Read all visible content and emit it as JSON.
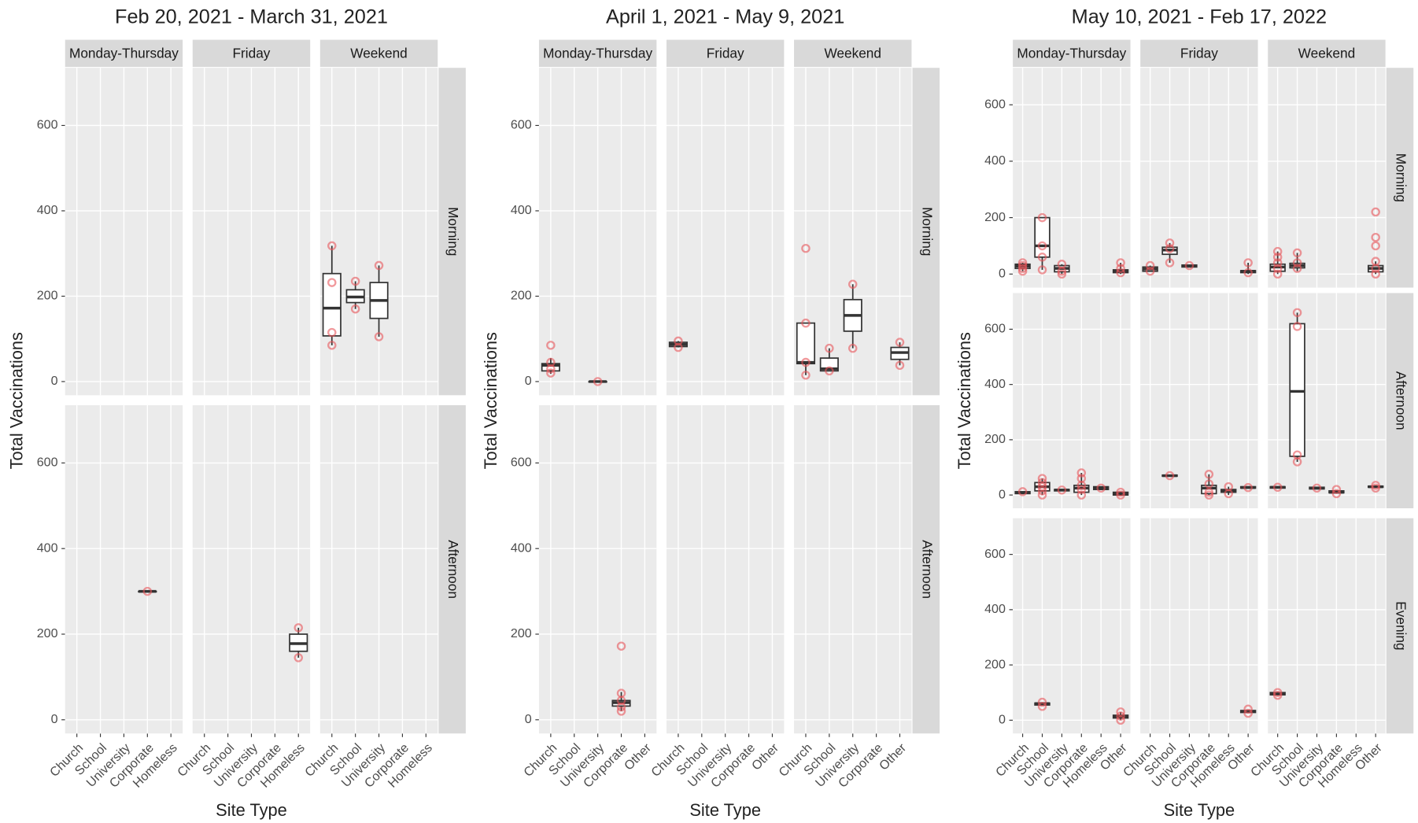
{
  "chart_data": [
    {
      "type": "box",
      "title": "Feb 20, 2021 - March 31, 2021",
      "x_label": "Site Type",
      "y_label": "Total Vaccinations",
      "columns": [
        "Monday-Thursday",
        "Friday",
        "Weekend"
      ],
      "rows": [
        "Morning",
        "Afternoon"
      ],
      "categories": [
        "Church",
        "School",
        "University",
        "Corporate",
        "Homeless"
      ],
      "ylim": [
        -32,
        735
      ],
      "yticks": [
        0,
        200,
        400,
        600
      ],
      "box_color": "#333333",
      "point_color": "#e8555a",
      "panels": [
        [
          [
            null,
            null,
            null,
            null,
            null
          ],
          [
            null,
            null,
            null,
            null,
            null
          ],
          [
            {
              "min": 85,
              "q1": 107,
              "median": 172,
              "q3": 253,
              "max": 318,
              "points": [
                318,
                232,
                115,
                85
              ]
            },
            {
              "min": 170,
              "q1": 185,
              "median": 198,
              "q3": 215,
              "max": 235,
              "points": [
                235,
                170
              ]
            },
            {
              "min": 105,
              "q1": 148,
              "median": 190,
              "q3": 232,
              "max": 272,
              "points": [
                272,
                105
              ]
            },
            null,
            null
          ]
        ],
        [
          [
            null,
            null,
            null,
            {
              "min": 300,
              "q1": 300,
              "median": 300,
              "q3": 300,
              "max": 300,
              "points": [
                300
              ]
            },
            null
          ],
          [
            null,
            null,
            null,
            null,
            {
              "min": 145,
              "q1": 160,
              "median": 178,
              "q3": 200,
              "max": 215,
              "points": [
                215,
                145
              ]
            }
          ],
          [
            null,
            null,
            null,
            null,
            null
          ]
        ]
      ]
    },
    {
      "type": "box",
      "title": "April 1, 2021 - May 9, 2021",
      "x_label": "Site Type",
      "y_label": "Total Vaccinations",
      "columns": [
        "Monday-Thursday",
        "Friday",
        "Weekend"
      ],
      "rows": [
        "Morning",
        "Afternoon"
      ],
      "categories": [
        "Church",
        "School",
        "University",
        "Corporate",
        "Other"
      ],
      "ylim": [
        -32,
        735
      ],
      "yticks": [
        0,
        200,
        400,
        600
      ],
      "box_color": "#333333",
      "point_color": "#e8555a",
      "panels": [
        [
          [
            {
              "min": 18,
              "q1": 25,
              "median": 38,
              "q3": 42,
              "max": 55,
              "points": [
                85,
                45,
                30,
                20
              ]
            },
            null,
            {
              "min": 0,
              "q1": 0,
              "median": 0,
              "q3": 0,
              "max": 0,
              "points": [
                0
              ]
            },
            null,
            null
          ],
          [
            {
              "min": 80,
              "q1": 82,
              "median": 87,
              "q3": 92,
              "max": 95,
              "points": [
                95,
                80
              ]
            },
            null,
            null,
            null,
            null
          ],
          [
            {
              "min": 15,
              "q1": 42,
              "median": 45,
              "q3": 137,
              "max": 137,
              "points": [
                312,
                137,
                45,
                15
              ]
            },
            {
              "min": 25,
              "q1": 25,
              "median": 30,
              "q3": 55,
              "max": 78,
              "points": [
                78,
                25
              ]
            },
            {
              "min": 78,
              "q1": 118,
              "median": 155,
              "q3": 192,
              "max": 228,
              "points": [
                228,
                78
              ]
            },
            null,
            {
              "min": 38,
              "q1": 52,
              "median": 68,
              "q3": 80,
              "max": 92,
              "points": [
                92,
                38
              ]
            }
          ]
        ],
        [
          [
            null,
            null,
            null,
            {
              "min": 20,
              "q1": 32,
              "median": 40,
              "q3": 45,
              "max": 65,
              "points": [
                172,
                62,
                45,
                30,
                20
              ]
            },
            null
          ],
          [
            null,
            null,
            null,
            null,
            null
          ],
          [
            null,
            null,
            null,
            null,
            null
          ]
        ]
      ]
    },
    {
      "type": "box",
      "title": "May 10, 2021 - Feb 17, 2022",
      "x_label": "Site Type",
      "y_label": "Total Vaccinations",
      "columns": [
        "Monday-Thursday",
        "Friday",
        "Weekend"
      ],
      "rows": [
        "Morning",
        "Afternoon",
        "Evening"
      ],
      "categories": [
        "Church",
        "School",
        "University",
        "Corporate",
        "Homeless",
        "Other"
      ],
      "ylim": [
        -48,
        731
      ],
      "yticks": [
        0,
        200,
        400,
        600
      ],
      "box_color": "#333333",
      "point_color": "#e8555a",
      "panels": [
        [
          [
            {
              "min": 10,
              "q1": 20,
              "median": 28,
              "q3": 35,
              "max": 40,
              "points": [
                40,
                30,
                20,
                10
              ]
            },
            {
              "min": 15,
              "q1": 60,
              "median": 100,
              "q3": 200,
              "max": 200,
              "points": [
                200,
                100,
                60,
                15
              ]
            },
            {
              "min": 0,
              "q1": 8,
              "median": 20,
              "q3": 30,
              "max": 35,
              "points": [
                35,
                10,
                0
              ]
            },
            null,
            null,
            {
              "min": 0,
              "q1": 5,
              "median": 10,
              "q3": 15,
              "max": 40,
              "points": [
                40,
                20,
                5
              ]
            }
          ],
          [
            {
              "min": 10,
              "q1": 10,
              "median": 18,
              "q3": 25,
              "max": 30,
              "points": [
                30,
                10
              ]
            },
            {
              "min": 40,
              "q1": 70,
              "median": 85,
              "q3": 95,
              "max": 110,
              "points": [
                110,
                90,
                40
              ]
            },
            {
              "min": 25,
              "q1": 25,
              "median": 28,
              "q3": 32,
              "max": 32,
              "points": [
                30
              ]
            },
            null,
            null,
            {
              "min": 0,
              "q1": 5,
              "median": 10,
              "q3": 12,
              "max": 40,
              "points": [
                40,
                5
              ]
            }
          ],
          [
            {
              "min": 0,
              "q1": 10,
              "median": 25,
              "q3": 35,
              "max": 80,
              "points": [
                80,
                60,
                40,
                20,
                0
              ]
            },
            {
              "min": 10,
              "q1": 22,
              "median": 30,
              "q3": 38,
              "max": 75,
              "points": [
                75,
                40,
                20
              ]
            },
            null,
            null,
            null,
            {
              "min": 0,
              "q1": 8,
              "median": 20,
              "q3": 30,
              "max": 45,
              "points": [
                220,
                130,
                100,
                45,
                20,
                0
              ]
            }
          ]
        ],
        [
          [
            {
              "min": 5,
              "q1": 5,
              "median": 8,
              "q3": 12,
              "max": 12,
              "points": [
                12
              ]
            },
            {
              "min": 0,
              "q1": 15,
              "median": 30,
              "q3": 45,
              "max": 60,
              "points": [
                60,
                45,
                30,
                15,
                0
              ]
            },
            {
              "min": 15,
              "q1": 15,
              "median": 18,
              "q3": 20,
              "max": 20,
              "points": [
                18
              ]
            },
            {
              "min": 0,
              "q1": 10,
              "median": 25,
              "q3": 35,
              "max": 80,
              "points": [
                80,
                60,
                35,
                20,
                0
              ]
            },
            {
              "min": 20,
              "q1": 20,
              "median": 25,
              "q3": 30,
              "max": 30,
              "points": [
                25
              ]
            },
            {
              "min": 0,
              "q1": 0,
              "median": 5,
              "q3": 10,
              "max": 10,
              "points": [
                10,
                0
              ]
            }
          ],
          [
            null,
            {
              "min": 68,
              "q1": 68,
              "median": 70,
              "q3": 72,
              "max": 72,
              "points": [
                70
              ]
            },
            null,
            {
              "min": 0,
              "q1": 5,
              "median": 25,
              "q3": 35,
              "max": 75,
              "points": [
                75,
                40,
                10,
                0
              ]
            },
            {
              "min": 0,
              "q1": 10,
              "median": 15,
              "q3": 20,
              "max": 30,
              "points": [
                30,
                5
              ]
            },
            {
              "min": 25,
              "q1": 25,
              "median": 27,
              "q3": 30,
              "max": 30,
              "points": [
                27
              ]
            }
          ],
          [
            {
              "min": 25,
              "q1": 25,
              "median": 28,
              "q3": 30,
              "max": 30,
              "points": [
                28
              ]
            },
            {
              "min": 120,
              "q1": 140,
              "median": 375,
              "q3": 620,
              "max": 660,
              "points": [
                660,
                610,
                145,
                120
              ]
            },
            {
              "min": 22,
              "q1": 22,
              "median": 25,
              "q3": 28,
              "max": 28,
              "points": [
                25
              ]
            },
            {
              "min": 8,
              "q1": 8,
              "median": 10,
              "q3": 15,
              "max": 15,
              "points": [
                20,
                5
              ]
            },
            null,
            {
              "min": 28,
              "q1": 28,
              "median": 30,
              "q3": 32,
              "max": 32,
              "points": [
                35,
                25
              ]
            }
          ]
        ],
        [
          [
            null,
            {
              "min": 55,
              "q1": 55,
              "median": 60,
              "q3": 62,
              "max": 62,
              "points": [
                65,
                50
              ]
            },
            null,
            null,
            null,
            {
              "min": 0,
              "q1": 8,
              "median": 12,
              "q3": 18,
              "max": 30,
              "points": [
                30,
                15,
                0
              ]
            }
          ],
          [
            null,
            null,
            null,
            null,
            null,
            {
              "min": 28,
              "q1": 28,
              "median": 32,
              "q3": 35,
              "max": 35,
              "points": [
                40,
                25
              ]
            }
          ],
          [
            {
              "min": 92,
              "q1": 92,
              "median": 95,
              "q3": 100,
              "max": 100,
              "points": [
                100,
                90
              ]
            },
            null,
            null,
            null,
            null,
            null
          ]
        ]
      ]
    }
  ]
}
